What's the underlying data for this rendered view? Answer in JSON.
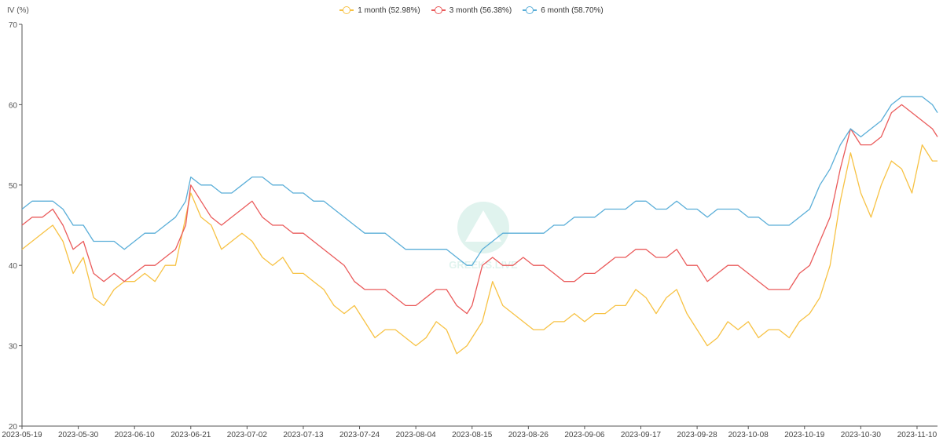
{
  "chart_data": {
    "type": "line",
    "ylabel": "IV (%)",
    "xlabel": "",
    "title": "",
    "ylim": [
      20,
      70
    ],
    "yticks": [
      20,
      30,
      40,
      50,
      60,
      70
    ],
    "xlim": [
      "2023-05-19",
      "2023-11-14"
    ],
    "xticks": [
      "2023-05-19",
      "2023-05-30",
      "2023-06-10",
      "2023-06-21",
      "2023-07-02",
      "2023-07-13",
      "2023-07-24",
      "2023-08-04",
      "2023-08-15",
      "2023-08-26",
      "2023-09-06",
      "2023-09-17",
      "2023-09-28",
      "2023-10-08",
      "2023-10-19",
      "2023-10-30",
      "2023-11-10"
    ],
    "grid": false,
    "legend_position": "top-center",
    "x": [
      "2023-05-19",
      "2023-05-21",
      "2023-05-23",
      "2023-05-25",
      "2023-05-27",
      "2023-05-29",
      "2023-05-31",
      "2023-06-02",
      "2023-06-04",
      "2023-06-06",
      "2023-06-08",
      "2023-06-10",
      "2023-06-12",
      "2023-06-14",
      "2023-06-16",
      "2023-06-18",
      "2023-06-20",
      "2023-06-21",
      "2023-06-23",
      "2023-06-25",
      "2023-06-27",
      "2023-06-29",
      "2023-07-01",
      "2023-07-03",
      "2023-07-05",
      "2023-07-07",
      "2023-07-09",
      "2023-07-11",
      "2023-07-13",
      "2023-07-15",
      "2023-07-17",
      "2023-07-19",
      "2023-07-21",
      "2023-07-23",
      "2023-07-25",
      "2023-07-27",
      "2023-07-29",
      "2023-07-31",
      "2023-08-02",
      "2023-08-04",
      "2023-08-06",
      "2023-08-08",
      "2023-08-10",
      "2023-08-12",
      "2023-08-14",
      "2023-08-15",
      "2023-08-17",
      "2023-08-19",
      "2023-08-21",
      "2023-08-23",
      "2023-08-25",
      "2023-08-27",
      "2023-08-29",
      "2023-08-31",
      "2023-09-02",
      "2023-09-04",
      "2023-09-06",
      "2023-09-08",
      "2023-09-10",
      "2023-09-12",
      "2023-09-14",
      "2023-09-16",
      "2023-09-18",
      "2023-09-20",
      "2023-09-22",
      "2023-09-24",
      "2023-09-26",
      "2023-09-28",
      "2023-09-30",
      "2023-10-02",
      "2023-10-04",
      "2023-10-06",
      "2023-10-08",
      "2023-10-10",
      "2023-10-12",
      "2023-10-14",
      "2023-10-16",
      "2023-10-18",
      "2023-10-20",
      "2023-10-22",
      "2023-10-24",
      "2023-10-26",
      "2023-10-28",
      "2023-10-30",
      "2023-11-01",
      "2023-11-03",
      "2023-11-05",
      "2023-11-07",
      "2023-11-09",
      "2023-11-11",
      "2023-11-13",
      "2023-11-14"
    ],
    "series": [
      {
        "name": "1 month (52.98%)",
        "color": "#f7c244",
        "values": [
          42,
          43,
          44,
          45,
          43,
          39,
          41,
          36,
          35,
          37,
          38,
          38,
          39,
          38,
          40,
          40,
          46,
          49,
          46,
          45,
          42,
          43,
          44,
          43,
          41,
          40,
          41,
          39,
          39,
          38,
          37,
          35,
          34,
          35,
          33,
          31,
          32,
          32,
          31,
          30,
          31,
          33,
          32,
          29,
          30,
          31,
          33,
          38,
          35,
          34,
          33,
          32,
          32,
          33,
          33,
          34,
          33,
          34,
          34,
          35,
          35,
          37,
          36,
          34,
          36,
          37,
          34,
          32,
          30,
          31,
          33,
          32,
          33,
          31,
          32,
          32,
          31,
          33,
          34,
          36,
          40,
          48,
          54,
          49,
          46,
          50,
          53,
          52,
          49,
          55,
          53,
          53
        ]
      },
      {
        "name": "3 month (56.38%)",
        "color": "#ea5b5b",
        "values": [
          45,
          46,
          46,
          47,
          45,
          42,
          43,
          39,
          38,
          39,
          38,
          39,
          40,
          40,
          41,
          42,
          45,
          50,
          48,
          46,
          45,
          46,
          47,
          48,
          46,
          45,
          45,
          44,
          44,
          43,
          42,
          41,
          40,
          38,
          37,
          37,
          37,
          36,
          35,
          35,
          36,
          37,
          37,
          35,
          34,
          35,
          40,
          41,
          40,
          40,
          41,
          40,
          40,
          39,
          38,
          38,
          39,
          39,
          40,
          41,
          41,
          42,
          42,
          41,
          41,
          42,
          40,
          40,
          38,
          39,
          40,
          40,
          39,
          38,
          37,
          37,
          37,
          39,
          40,
          43,
          46,
          52,
          57,
          55,
          55,
          56,
          59,
          60,
          59,
          58,
          57,
          56
        ]
      },
      {
        "name": "6 month (58.70%)",
        "color": "#5aaed8",
        "values": [
          47,
          48,
          48,
          48,
          47,
          45,
          45,
          43,
          43,
          43,
          42,
          43,
          44,
          44,
          45,
          46,
          48,
          51,
          50,
          50,
          49,
          49,
          50,
          51,
          51,
          50,
          50,
          49,
          49,
          48,
          48,
          47,
          46,
          45,
          44,
          44,
          44,
          43,
          42,
          42,
          42,
          42,
          42,
          41,
          40,
          40,
          42,
          43,
          44,
          44,
          44,
          44,
          44,
          45,
          45,
          46,
          46,
          46,
          47,
          47,
          47,
          48,
          48,
          47,
          47,
          48,
          47,
          47,
          46,
          47,
          47,
          47,
          46,
          46,
          45,
          45,
          45,
          46,
          47,
          50,
          52,
          55,
          57,
          56,
          57,
          58,
          60,
          61,
          61,
          61,
          60,
          59
        ]
      }
    ]
  },
  "watermark_text": "GREEKS.LIVE"
}
